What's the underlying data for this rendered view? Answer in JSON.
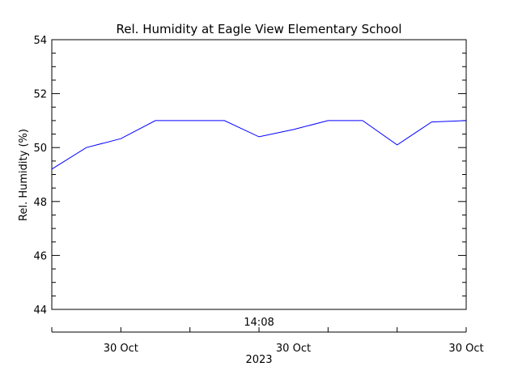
{
  "chart_data": {
    "type": "line",
    "title": "Rel. Humidity at Eagle View Elementary School",
    "ylabel": "Rel. Humidity (%)",
    "xlabel": "",
    "ylim": [
      44,
      54
    ],
    "y_major_ticks": [
      44,
      46,
      48,
      50,
      52,
      54
    ],
    "y_minor_step": 0.5,
    "x_top_label": "14:08",
    "x_tick_labels": [
      "30 Oct",
      "30 Oct",
      "30 Oct"
    ],
    "x_year_label": "2023",
    "grid": false,
    "legend": "none",
    "line_color": "#0000ff",
    "series": [
      {
        "values": [
          49.2,
          50.0,
          50.33,
          51.0,
          51.0,
          51.0,
          50.4,
          50.67,
          51.0,
          51.0,
          50.1,
          50.95,
          51.0
        ]
      }
    ]
  }
}
